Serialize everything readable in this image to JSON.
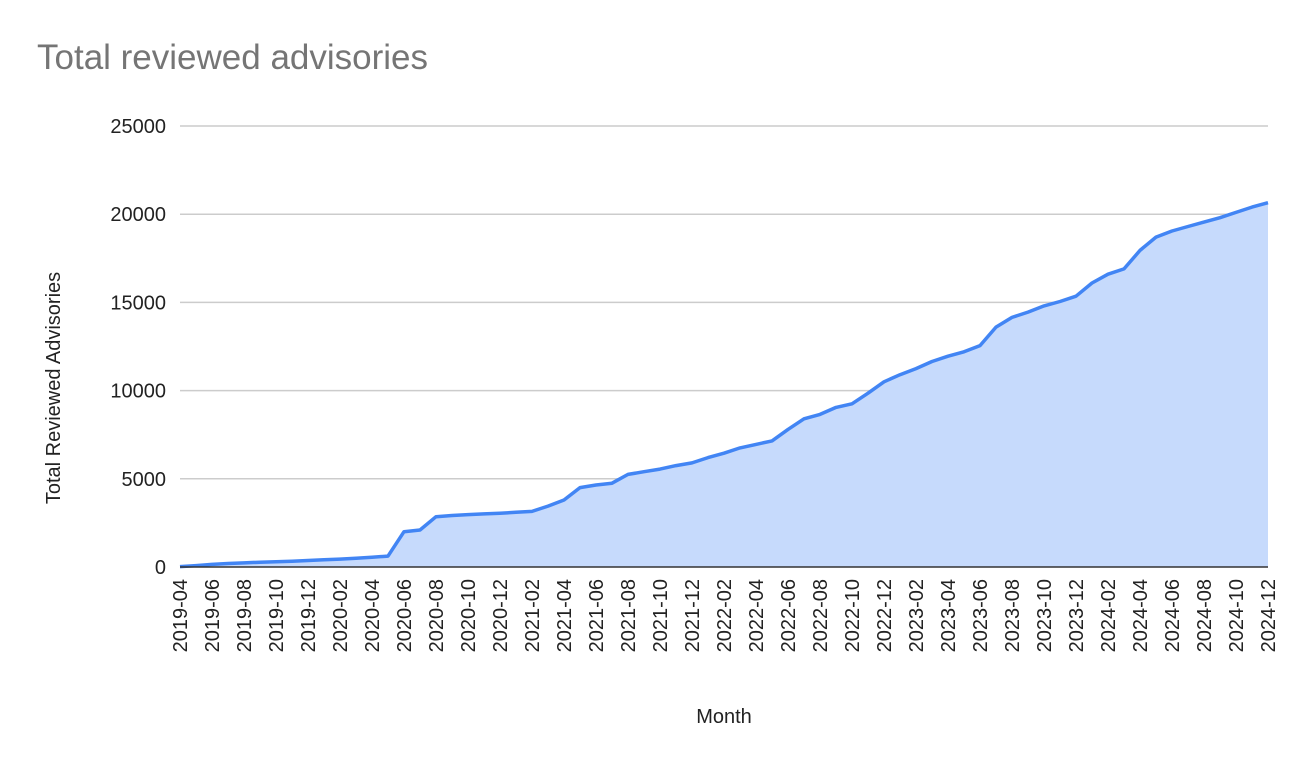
{
  "chart_data": {
    "type": "area",
    "title": "Total reviewed advisories",
    "xlabel": "Month",
    "ylabel": "Total Reviewed Advisories",
    "ylim": [
      0,
      25000
    ],
    "yticks": [
      0,
      5000,
      10000,
      15000,
      20000,
      25000
    ],
    "grid": true,
    "legend": "none",
    "x_tick_labels": [
      "2019-04",
      "2019-06",
      "2019-08",
      "2019-10",
      "2019-12",
      "2020-02",
      "2020-04",
      "2020-06",
      "2020-08",
      "2020-10",
      "2020-12",
      "2021-02",
      "2021-04",
      "2021-06",
      "2021-08",
      "2021-10",
      "2021-12",
      "2022-02",
      "2022-04",
      "2022-06",
      "2022-08",
      "2022-10",
      "2022-12",
      "2023-02",
      "2023-04",
      "2023-06",
      "2023-08",
      "2023-10",
      "2023-12",
      "2024-02",
      "2024-04",
      "2024-06",
      "2024-08",
      "2024-10",
      "2024-12"
    ],
    "x": [
      "2019-04",
      "2019-05",
      "2019-06",
      "2019-07",
      "2019-08",
      "2019-09",
      "2019-10",
      "2019-11",
      "2019-12",
      "2020-01",
      "2020-02",
      "2020-03",
      "2020-04",
      "2020-05",
      "2020-06",
      "2020-07",
      "2020-08",
      "2020-09",
      "2020-10",
      "2020-11",
      "2020-12",
      "2021-01",
      "2021-02",
      "2021-03",
      "2021-04",
      "2021-05",
      "2021-06",
      "2021-07",
      "2021-08",
      "2021-09",
      "2021-10",
      "2021-11",
      "2021-12",
      "2022-01",
      "2022-02",
      "2022-03",
      "2022-04",
      "2022-05",
      "2022-06",
      "2022-07",
      "2022-08",
      "2022-09",
      "2022-10",
      "2022-11",
      "2022-12",
      "2023-01",
      "2023-02",
      "2023-03",
      "2023-04",
      "2023-05",
      "2023-06",
      "2023-07",
      "2023-08",
      "2023-09",
      "2023-10",
      "2023-11",
      "2023-12",
      "2024-01",
      "2024-02",
      "2024-03",
      "2024-04",
      "2024-05",
      "2024-06",
      "2024-07",
      "2024-08",
      "2024-09",
      "2024-10",
      "2024-11",
      "2024-12"
    ],
    "series": [
      {
        "name": "Total Reviewed Advisories",
        "color": "#4285f4",
        "fill": "#c6dafc",
        "values": [
          20,
          80,
          150,
          200,
          230,
          270,
          300,
          330,
          370,
          410,
          450,
          500,
          550,
          620,
          2000,
          2100,
          2850,
          2920,
          2970,
          3010,
          3050,
          3100,
          3150,
          3450,
          3800,
          4500,
          4650,
          4750,
          5250,
          5400,
          5550,
          5750,
          5900,
          6200,
          6450,
          6750,
          6950,
          7150,
          7800,
          8400,
          8650,
          9050,
          9250,
          9850,
          10500,
          10900,
          11250,
          11650,
          11950,
          12200,
          12550,
          13600,
          14150,
          14450,
          14800,
          15050,
          15350,
          16100,
          16600,
          16900,
          17950,
          18700,
          19050,
          19300,
          19550,
          19800,
          20100,
          20400,
          20650
        ]
      }
    ]
  },
  "colors": {
    "line": "#4285f4",
    "area": "#c6dafc",
    "grid": "#cccccc",
    "baseline": "#333333",
    "title": "#757575",
    "text": "#222222"
  }
}
